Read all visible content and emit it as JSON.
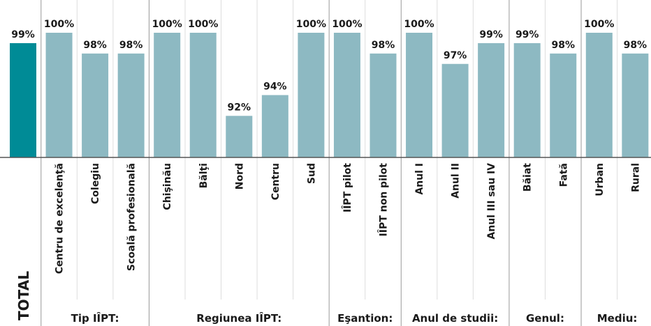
{
  "chart_data": {
    "type": "bar",
    "ylim": [
      88,
      100
    ],
    "color": "#8db9c2",
    "total": {
      "category": "TOTAL",
      "value": 99,
      "value_label": "99%",
      "color": "#008b96"
    },
    "groups": [
      {
        "name": "Tip IÎPT:",
        "categories": [
          "Centru de excelenţă",
          "Colegiu",
          "Scoală profesională"
        ],
        "values": [
          100,
          98,
          98
        ],
        "value_labels": [
          "100%",
          "98%",
          "98%"
        ]
      },
      {
        "name": "Regiunea IÎPT:",
        "categories": [
          "Chişinău",
          "Bălţi",
          "Nord",
          "Centru",
          "Sud"
        ],
        "values": [
          100,
          100,
          92,
          94,
          100
        ],
        "value_labels": [
          "100%",
          "100%",
          "92%",
          "94%",
          "100%"
        ]
      },
      {
        "name": "Eşantion:",
        "categories": [
          "IÎPT pilot",
          "IÎPT non pilot"
        ],
        "values": [
          100,
          98
        ],
        "value_labels": [
          "100%",
          "98%"
        ]
      },
      {
        "name": "Anul de studii:",
        "categories": [
          "Anul I",
          "Anul II",
          "Anul III sau IV"
        ],
        "values": [
          100,
          97,
          99
        ],
        "value_labels": [
          "100%",
          "97%",
          "99%"
        ]
      },
      {
        "name": "Genul:",
        "categories": [
          "Băiat",
          "Fată"
        ],
        "values": [
          99,
          98
        ],
        "value_labels": [
          "99%",
          "98%"
        ]
      },
      {
        "name": "Mediu:",
        "categories": [
          "Urban",
          "Rural"
        ],
        "values": [
          100,
          98
        ],
        "value_labels": [
          "100%",
          "98%"
        ]
      }
    ]
  }
}
